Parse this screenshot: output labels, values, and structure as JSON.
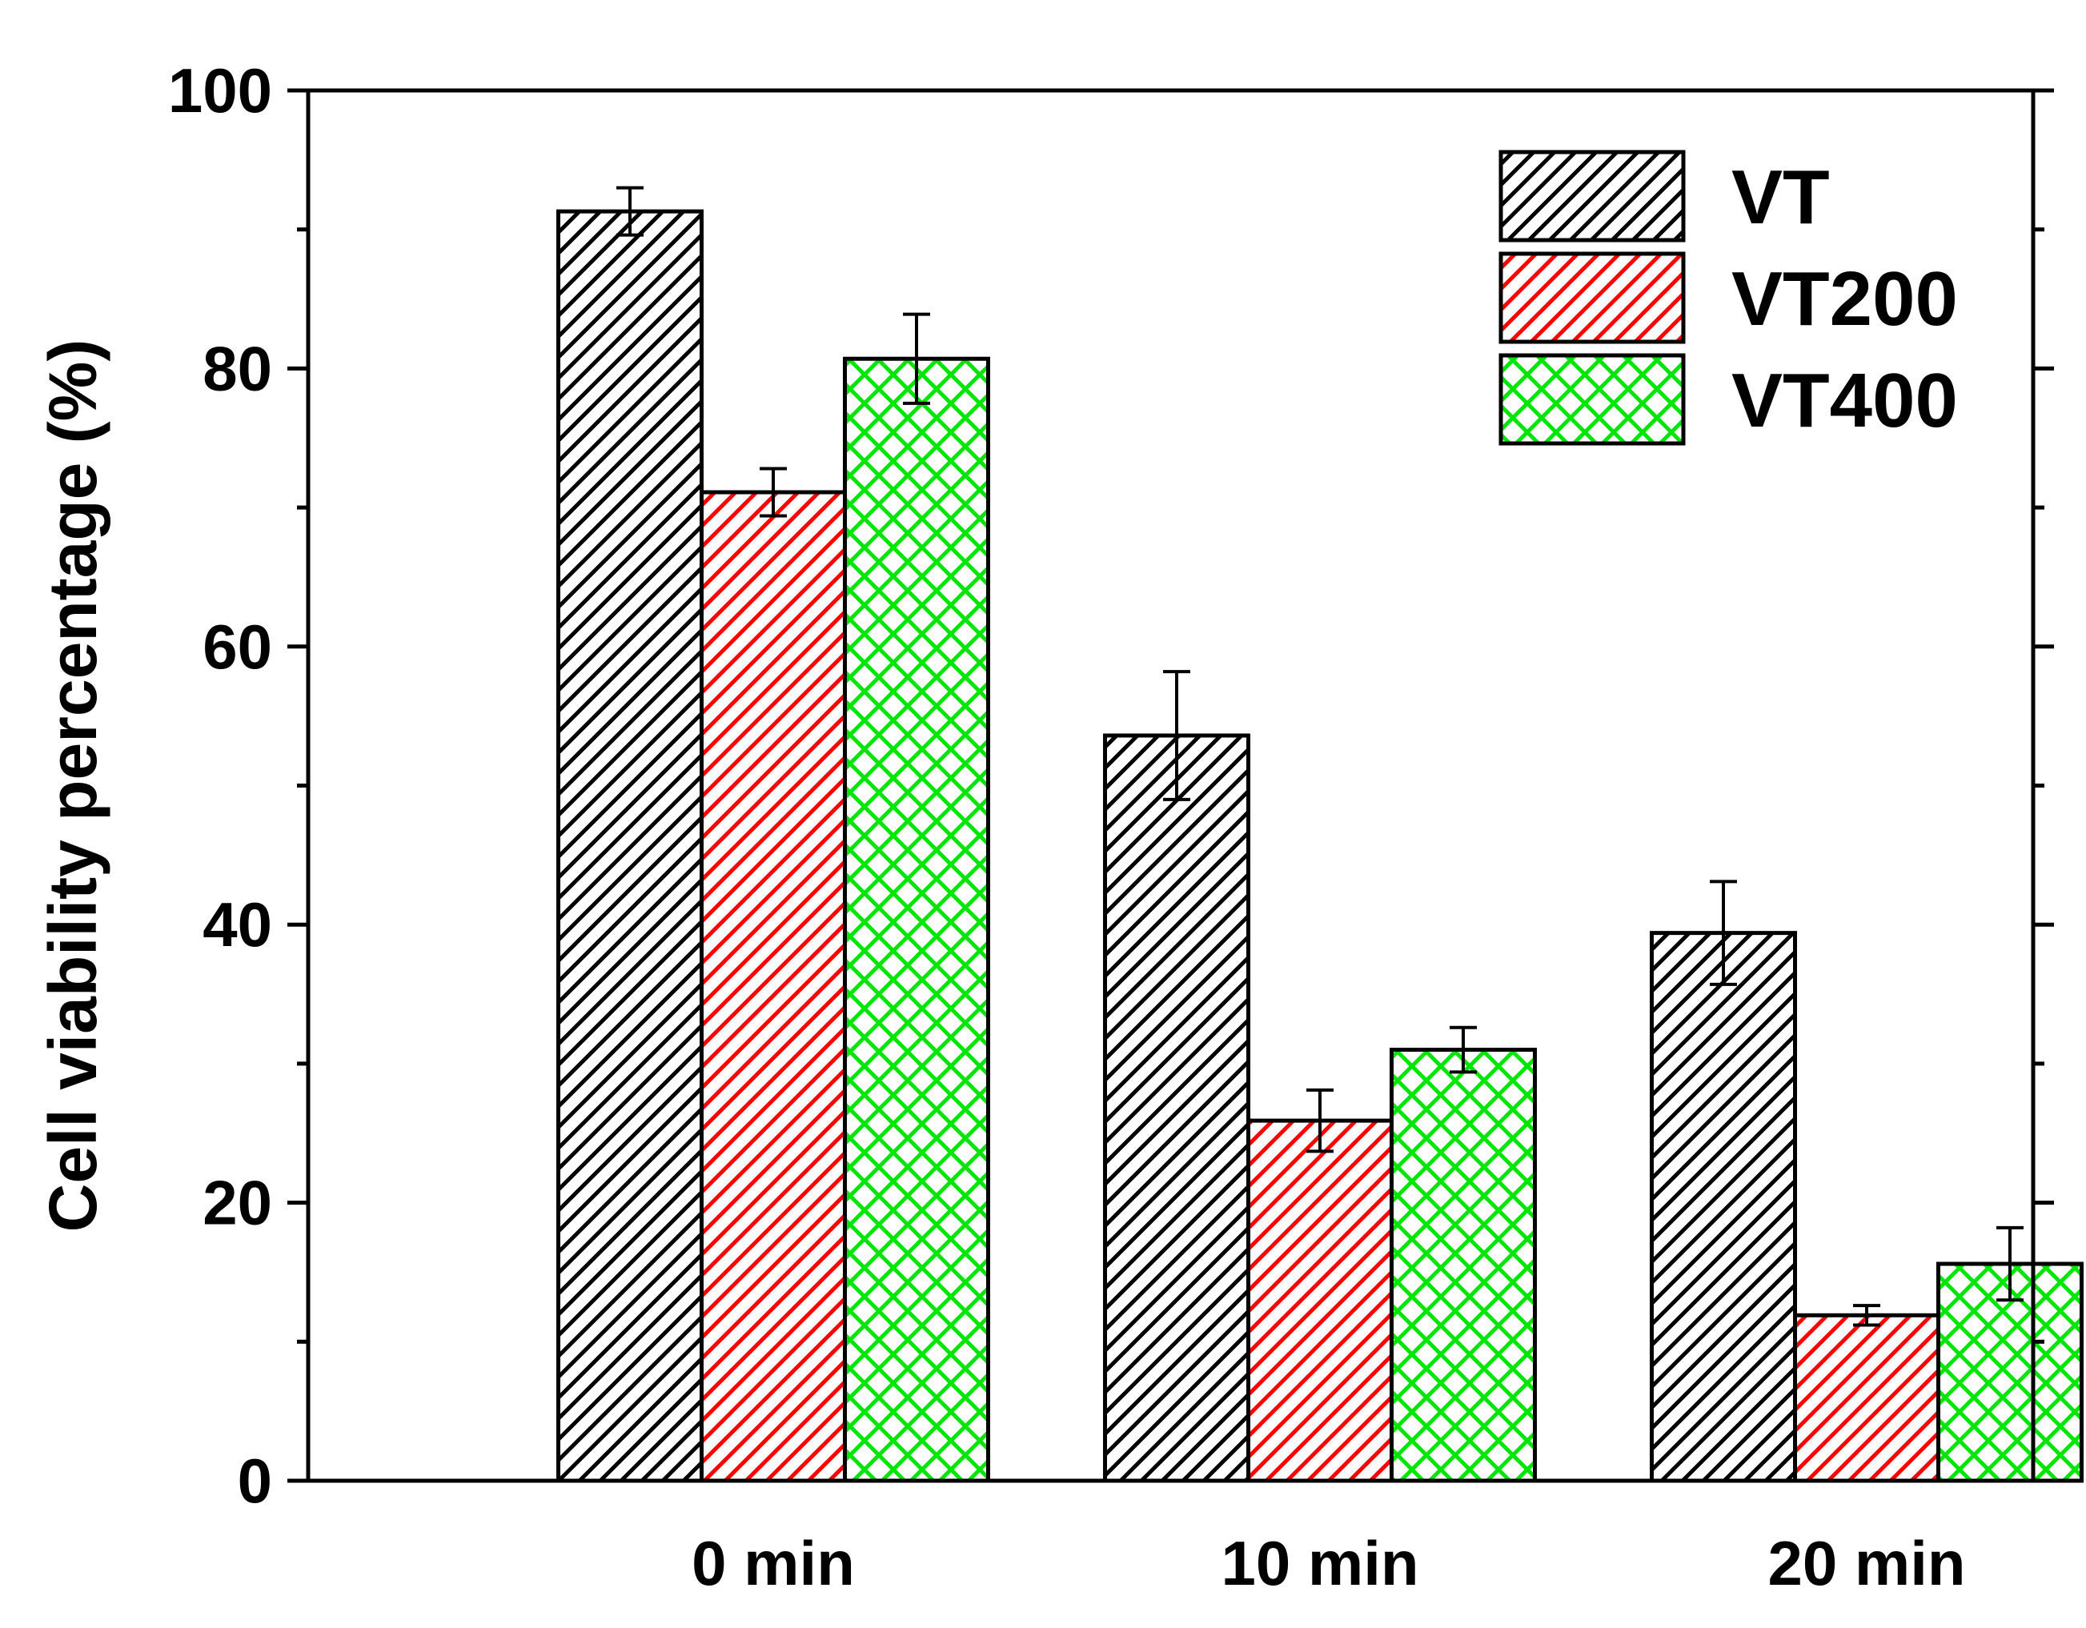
{
  "chart_data": {
    "type": "bar",
    "title": "",
    "xlabel": "",
    "ylabel": "Cell viability percentage (%)",
    "ylim": [
      0,
      100
    ],
    "yticks": [
      0,
      20,
      40,
      60,
      80,
      100
    ],
    "minor_step": 10,
    "grid": false,
    "categories": [
      "0 min",
      "10 min",
      "20 min"
    ],
    "legend_position": "top-right",
    "series": [
      {
        "name": "VT",
        "values": [
          91.3,
          53.6,
          39.4
        ],
        "errors": [
          1.7,
          4.6,
          3.7
        ],
        "color": "#000000",
        "pattern": "diagonal"
      },
      {
        "name": "VT200",
        "values": [
          71.1,
          25.9,
          11.9
        ],
        "errors": [
          1.7,
          2.2,
          0.7
        ],
        "color": "#ff0000",
        "pattern": "diagonal"
      },
      {
        "name": "VT400",
        "values": [
          80.7,
          31.0,
          15.6
        ],
        "errors": [
          3.2,
          1.6,
          2.6
        ],
        "color": "#00e600",
        "pattern": "crosshatch"
      }
    ]
  }
}
